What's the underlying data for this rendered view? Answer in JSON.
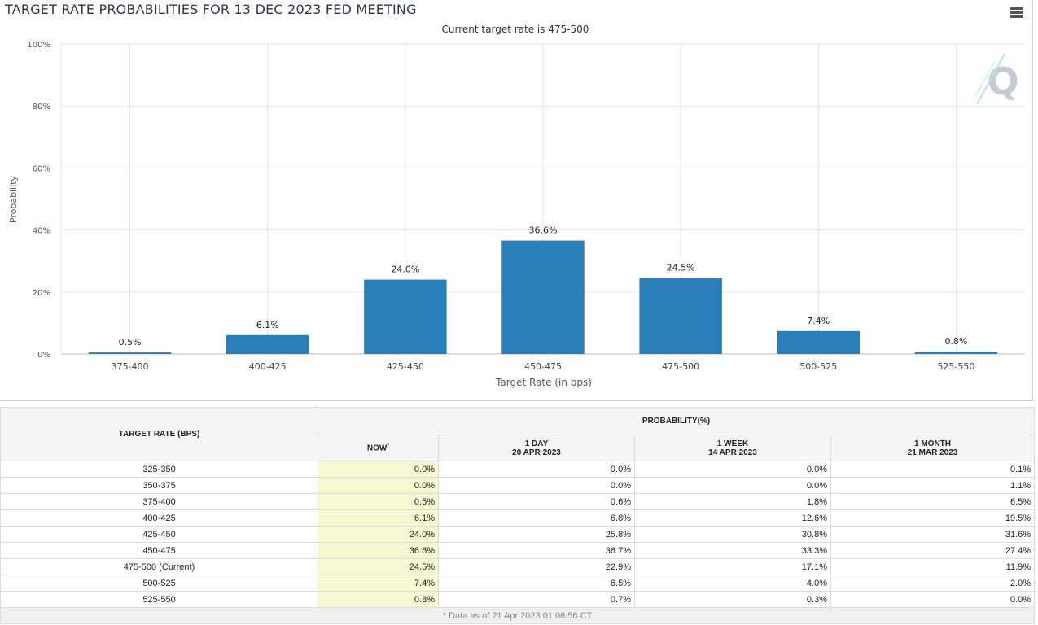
{
  "title": "TARGET RATE PROBABILITIES FOR 13 DEC 2023 FED MEETING",
  "chart_data": {
    "type": "bar",
    "title": "TARGET RATE PROBABILITIES FOR 13 DEC 2023 FED MEETING",
    "subtitle": "Current target rate is 475-500",
    "xlabel": "Target Rate (in bps)",
    "ylabel": "Probability",
    "ylim": [
      0,
      100
    ],
    "yticks": [
      "0%",
      "20%",
      "40%",
      "60%",
      "80%",
      "100%"
    ],
    "categories": [
      "375-400",
      "400-425",
      "425-450",
      "450-475",
      "475-500",
      "500-525",
      "525-550"
    ],
    "values": [
      0.5,
      6.1,
      24.0,
      36.6,
      24.5,
      7.4,
      0.8
    ],
    "data_labels": [
      "0.5%",
      "6.1%",
      "24.0%",
      "36.6%",
      "24.5%",
      "7.4%",
      "0.8%"
    ],
    "bar_color": "#2a7fb8",
    "grid": true
  },
  "table": {
    "col_target": "TARGET RATE (BPS)",
    "col_probability": "PROBABILITY(%)",
    "col_now": "NOW",
    "now_mark": "*",
    "col_day": "1 DAY",
    "col_day_date": "20 APR 2023",
    "col_week": "1 WEEK",
    "col_week_date": "14 APR 2023",
    "col_month": "1 MONTH",
    "col_month_date": "21 MAR 2023",
    "rows": [
      {
        "rate": "325-350",
        "now": "0.0%",
        "day": "0.0%",
        "week": "0.0%",
        "month": "0.1%"
      },
      {
        "rate": "350-375",
        "now": "0.0%",
        "day": "0.0%",
        "week": "0.0%",
        "month": "1.1%"
      },
      {
        "rate": "375-400",
        "now": "0.5%",
        "day": "0.6%",
        "week": "1.8%",
        "month": "6.5%"
      },
      {
        "rate": "400-425",
        "now": "6.1%",
        "day": "6.8%",
        "week": "12.6%",
        "month": "19.5%"
      },
      {
        "rate": "425-450",
        "now": "24.0%",
        "day": "25.8%",
        "week": "30.8%",
        "month": "31.6%"
      },
      {
        "rate": "450-475",
        "now": "36.6%",
        "day": "36.7%",
        "week": "33.3%",
        "month": "27.4%"
      },
      {
        "rate": "475-500 (Current)",
        "now": "24.5%",
        "day": "22.9%",
        "week": "17.1%",
        "month": "11.9%"
      },
      {
        "rate": "500-525",
        "now": "7.4%",
        "day": "6.5%",
        "week": "4.0%",
        "month": "2.0%"
      },
      {
        "rate": "525-550",
        "now": "0.8%",
        "day": "0.7%",
        "week": "0.3%",
        "month": "0.0%"
      }
    ],
    "footnote": "* Data as of 21 Apr 2023 01:06:56 CT"
  },
  "logo_text": "Q"
}
